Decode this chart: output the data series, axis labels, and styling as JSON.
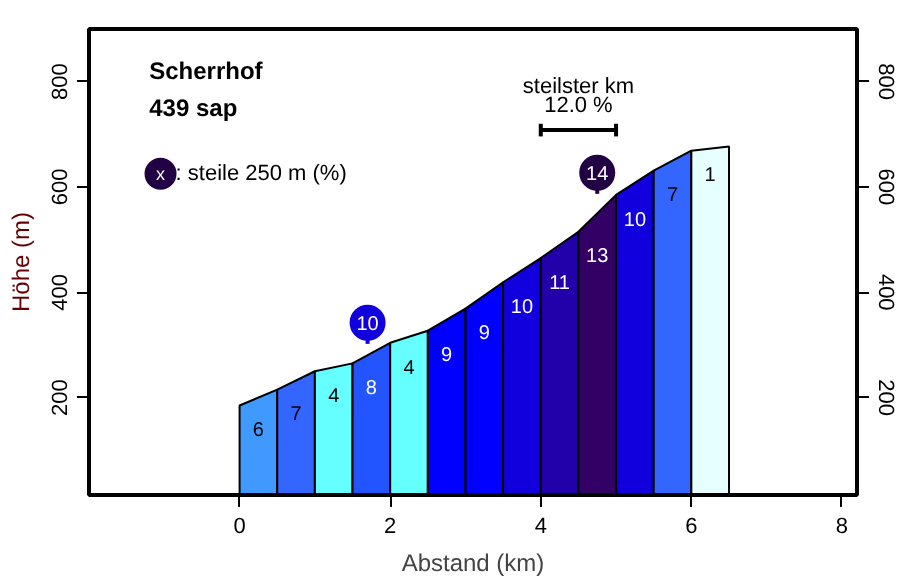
{
  "chart_data": {
    "type": "area",
    "xlabel": "Abstand (km)",
    "ylabel": "Höhe (m)",
    "series": [
      {
        "x": [
          0,
          0.5
        ],
        "values": [
          185,
          215
        ],
        "color": "#4099ff"
      },
      {
        "x": [
          0.5,
          1
        ],
        "values": [
          215,
          250
        ],
        "color": "#3366ff"
      },
      {
        "x": [
          1,
          1.5
        ],
        "values": [
          250,
          265
        ],
        "color": "#66ffff"
      },
      {
        "x": [
          1.5,
          2
        ],
        "values": [
          265,
          304
        ],
        "color": "#2255ff"
      },
      {
        "x": [
          2,
          2.5
        ],
        "values": [
          304,
          327
        ],
        "color": "#66ffff"
      },
      {
        "x": [
          2.5,
          3
        ],
        "values": [
          327,
          369
        ],
        "color": "#0000ff"
      },
      {
        "x": [
          3,
          3.5
        ],
        "values": [
          369,
          419
        ],
        "color": "#0000ff"
      },
      {
        "x": [
          3.5,
          4
        ],
        "values": [
          419,
          465
        ],
        "color": "#1100dd"
      },
      {
        "x": [
          4,
          4.5
        ],
        "values": [
          465,
          515
        ],
        "color": "#2200aa"
      },
      {
        "x": [
          4.5,
          5
        ],
        "values": [
          515,
          585
        ],
        "color": "#330066"
      },
      {
        "x": [
          5,
          5.5
        ],
        "values": [
          585,
          631
        ],
        "color": "#1100dd"
      },
      {
        "x": [
          5.5,
          6
        ],
        "values": [
          631,
          669
        ],
        "color": "#3366ff"
      },
      {
        "x": [
          6,
          6.5
        ],
        "values": [
          669,
          677
        ],
        "color": "#e6ffff"
      },
      {
        "type": "scatter",
        "x": [
          1.7,
          4.75
        ],
        "values": [
          342,
          627
        ],
        "colors": [
          "#1100dd",
          "#220044"
        ]
      },
      {
        "type": "line",
        "x": [
          4,
          5
        ],
        "values": [
          708,
          708
        ],
        "color": "#000000"
      }
    ],
    "xlim": [
      -2,
      8.2
    ],
    "ylim": [
      15,
      900
    ],
    "xticks": [
      0,
      2,
      4,
      6,
      8
    ],
    "yticks": [
      200,
      400,
      600,
      800
    ],
    "y2lim": [
      15,
      900
    ],
    "y2ticks": [
      200,
      400,
      600,
      800
    ],
    "grid": false,
    "annotations": [
      "Scherrhof",
      "439 sap",
      "x",
      ": steile 250 m (%)",
      "steilster km",
      "12.0 %",
      "6",
      "7",
      "4",
      "8",
      "4",
      "9",
      "9",
      "10",
      "11",
      "13",
      "10",
      "7",
      "1",
      "10",
      "14"
    ]
  }
}
